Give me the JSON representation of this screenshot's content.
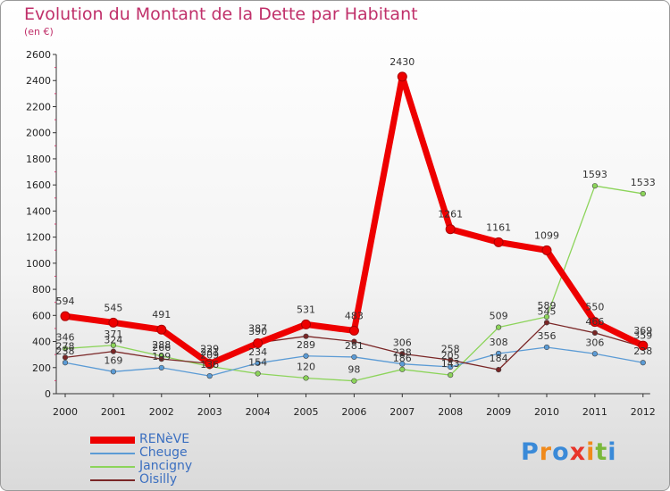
{
  "title": "Evolution du Montant de la Dette par Habitant",
  "subtitle": "(en €)",
  "logo": "Proxiti",
  "chart_data": {
    "type": "line",
    "categories": [
      "2000",
      "2001",
      "2002",
      "2003",
      "2004",
      "2005",
      "2006",
      "2007",
      "2008",
      "2009",
      "2010",
      "2011",
      "2012"
    ],
    "ylim": [
      0,
      2600
    ],
    "yticks": [
      0,
      200,
      400,
      600,
      800,
      1000,
      1200,
      1400,
      1600,
      1800,
      2000,
      2200,
      2400,
      2600
    ],
    "grid": false,
    "legend_position": "bottom-left",
    "series": [
      {
        "name": "Jancigny",
        "color": "#8cd45a",
        "width": 1.3,
        "values": [
          346,
          371,
          288,
          209,
          154,
          120,
          98,
          186,
          143,
          509,
          589,
          1593,
          1533
        ],
        "labels": [
          "346",
          "371",
          "288",
          "209",
          "154",
          "120",
          "98",
          "186",
          "143",
          "509",
          "589",
          "1593",
          "1533"
        ]
      },
      {
        "name": "Cheuge",
        "color": "#5b9bd5",
        "width": 1.3,
        "values": [
          238,
          169,
          199,
          136,
          234,
          289,
          281,
          228,
          205,
          308,
          356,
          306,
          238
        ],
        "labels": [
          "238",
          "169",
          "199",
          "136",
          "234",
          "289",
          "281",
          "228",
          "205",
          "308",
          "356",
          "306",
          "238"
        ]
      },
      {
        "name": "Oisilly",
        "color": "#7a2626",
        "width": 1.3,
        "values": [
          278,
          324,
          266,
          231,
          390,
          440,
          400,
          306,
          258,
          184,
          545,
          466,
          359
        ],
        "labels": [
          "278",
          "324",
          "266",
          "231",
          "390",
          "",
          "",
          "306",
          "258",
          "184",
          "545",
          "466",
          "359"
        ]
      },
      {
        "name": "RENèVE",
        "color": "#ee0000",
        "width": 7,
        "values": [
          594,
          545,
          491,
          229,
          387,
          531,
          483,
          2430,
          1261,
          1161,
          1099,
          550,
          369
        ],
        "labels": [
          "594",
          "545",
          "491",
          "229",
          "387",
          "531",
          "483",
          "2430",
          "1261",
          "1161",
          "1099",
          "550",
          "369"
        ]
      }
    ],
    "legend": [
      "RENèVE",
      "Cheuge",
      "Jancigny",
      "Oisilly"
    ]
  }
}
